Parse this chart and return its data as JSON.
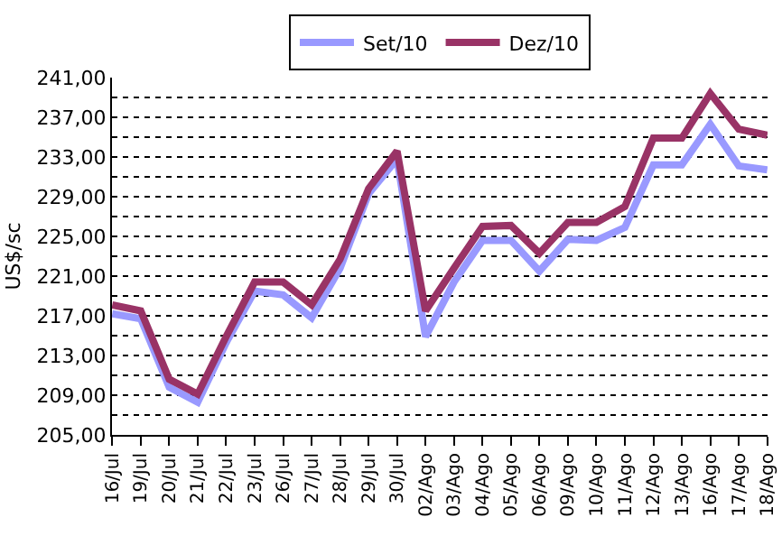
{
  "chart_data": {
    "type": "line",
    "ylabel": "US$/sc",
    "categories": [
      "16/Jul",
      "19/Jul",
      "20/Jul",
      "21/Jul",
      "22/Jul",
      "23/Jul",
      "26/Jul",
      "27/Jul",
      "28/Jul",
      "29/Jul",
      "30/Jul",
      "02/Ago",
      "03/Ago",
      "04/Ago",
      "05/Ago",
      "06/Ago",
      "09/Ago",
      "10/Ago",
      "11/Ago",
      "12/Ago",
      "13/Ago",
      "16/Ago",
      "17/Ago",
      "18/Ago"
    ],
    "series": [
      {
        "name": "Set/10",
        "color": "#9999ff",
        "values": [
          217.2,
          216.7,
          209.8,
          208.3,
          214.3,
          219.5,
          219.1,
          216.8,
          221.8,
          229.3,
          232.8,
          214.9,
          220.4,
          224.6,
          224.6,
          221.5,
          224.7,
          224.6,
          225.9,
          232.2,
          232.2,
          236.3,
          232.1,
          231.7
        ]
      },
      {
        "name": "Dez/10",
        "color": "#993366",
        "values": [
          218.1,
          217.5,
          210.6,
          209.1,
          214.9,
          220.4,
          220.4,
          218.1,
          222.7,
          229.8,
          233.6,
          217.5,
          221.8,
          226.0,
          226.1,
          223.3,
          226.4,
          226.4,
          228.0,
          234.9,
          234.9,
          239.4,
          235.8,
          235.2
        ]
      }
    ],
    "ylim": [
      205,
      241
    ],
    "yticks": [
      {
        "value": 205,
        "label": "205,00"
      },
      {
        "value": 207,
        "label": null
      },
      {
        "value": 209,
        "label": "209,00"
      },
      {
        "value": 211,
        "label": null
      },
      {
        "value": 213,
        "label": "213,00"
      },
      {
        "value": 215,
        "label": null
      },
      {
        "value": 217,
        "label": "217,00"
      },
      {
        "value": 219,
        "label": null
      },
      {
        "value": 221,
        "label": "221,00"
      },
      {
        "value": 223,
        "label": null
      },
      {
        "value": 225,
        "label": "225,00"
      },
      {
        "value": 227,
        "label": null
      },
      {
        "value": 229,
        "label": "229,00"
      },
      {
        "value": 231,
        "label": null
      },
      {
        "value": 233,
        "label": "233,00"
      },
      {
        "value": 235,
        "label": null
      },
      {
        "value": 237,
        "label": "237,00"
      },
      {
        "value": 239,
        "label": null
      },
      {
        "value": 241,
        "label": "241,00"
      }
    ],
    "grid": "y",
    "legend": "top",
    "marker": "none",
    "line_style": "solid"
  }
}
